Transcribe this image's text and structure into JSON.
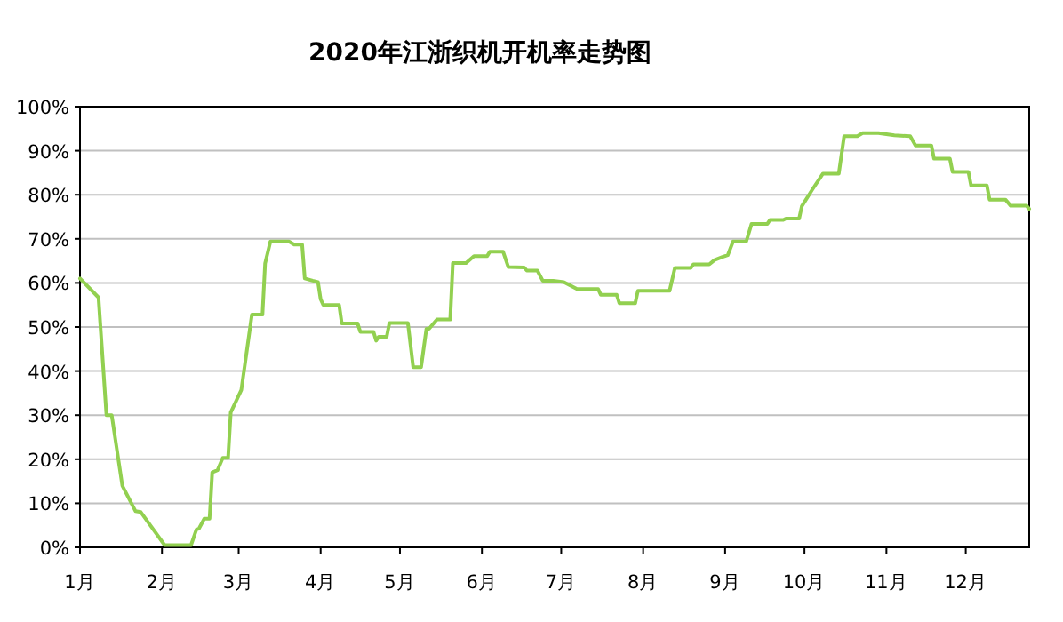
{
  "chart_data": {
    "type": "line",
    "title": "2020年江浙织机开机率走势图",
    "xlim": [
      "--01-01",
      "--12-25"
    ],
    "xticks": [
      {
        "value": "--01-01",
        "label": "1月"
      },
      {
        "value": "--02-01",
        "label": "2月"
      },
      {
        "value": "--03-01",
        "label": "3月"
      },
      {
        "value": "--04-01",
        "label": "4月"
      },
      {
        "value": "--05-01",
        "label": "5月"
      },
      {
        "value": "--06-01",
        "label": "6月"
      },
      {
        "value": "--07-01",
        "label": "7月"
      },
      {
        "value": "--08-01",
        "label": "8月"
      },
      {
        "value": "--09-01",
        "label": "9月"
      },
      {
        "value": "--10-01",
        "label": "10月"
      },
      {
        "value": "--11-01",
        "label": "11月"
      },
      {
        "value": "--12-01",
        "label": "12月"
      }
    ],
    "ylim": [
      0,
      100
    ],
    "yticks": [
      {
        "value": 0,
        "label": "0%"
      },
      {
        "value": 10,
        "label": "10%"
      },
      {
        "value": 20,
        "label": "20%"
      },
      {
        "value": 30,
        "label": "30%"
      },
      {
        "value": 40,
        "label": "40%"
      },
      {
        "value": 50,
        "label": "50%"
      },
      {
        "value": 60,
        "label": "60%"
      },
      {
        "value": 70,
        "label": "70%"
      },
      {
        "value": 80,
        "label": "80%"
      },
      {
        "value": 90,
        "label": "90%"
      },
      {
        "value": 100,
        "label": "100%"
      }
    ],
    "grid": "y",
    "marker": "none",
    "line_style": "solid",
    "series": [
      {
        "color": "#92d050",
        "x": [
          "--01-01",
          "--01-08",
          "--01-11",
          "--01-13",
          "--01-17",
          "--01-22",
          "--01-24",
          "--02-02",
          "--02-12",
          "--02-14",
          "--02-15",
          "--02-17",
          "--02-19",
          "--02-20",
          "--02-22",
          "--02-24",
          "--02-26",
          "--02-27",
          "--03-02",
          "--03-06",
          "--03-10",
          "--03-11",
          "--03-13",
          "--03-20",
          "--03-22",
          "--03-25",
          "--03-26",
          "--03-29",
          "--03-31",
          "--04-01",
          "--04-02",
          "--04-08",
          "--04-09",
          "--04-15",
          "--04-16",
          "--04-21",
          "--04-22",
          "--04-23",
          "--04-26",
          "--04-27",
          "--05-04",
          "--05-06",
          "--05-09",
          "--05-11",
          "--05-12",
          "--05-15",
          "--05-20",
          "--05-21",
          "--05-26",
          "--05-29",
          "--06-03",
          "--06-04",
          "--06-09",
          "--06-11",
          "--06-17",
          "--06-18",
          "--06-22",
          "--06-24",
          "--06-28",
          "--07-02",
          "--07-07",
          "--07-15",
          "--07-16",
          "--07-22",
          "--07-23",
          "--07-29",
          "--07-30",
          "--08-11",
          "--08-13",
          "--08-19",
          "--08-20",
          "--08-26",
          "--08-28",
          "--08-31",
          "--09-02",
          "--09-04",
          "--09-09",
          "--09-11",
          "--09-17",
          "--09-18",
          "--09-23",
          "--09-24",
          "--09-29",
          "--09-30",
          "--10-04",
          "--10-08",
          "--10-14",
          "--10-16",
          "--10-21",
          "--10-23",
          "--10-29",
          "--11-04",
          "--11-10",
          "--11-12",
          "--11-18",
          "--11-19",
          "--11-25",
          "--11-26",
          "--12-02",
          "--12-03",
          "--12-09",
          "--12-10",
          "--12-16",
          "--12-18",
          "--12-24",
          "--12-25"
        ],
        "values": [
          61,
          56.7,
          30,
          30,
          14,
          8.2,
          8,
          0.5,
          0.5,
          4,
          4.3,
          6.5,
          6.5,
          17,
          17.5,
          20.3,
          20.3,
          30.6,
          35.7,
          52.8,
          52.8,
          64.4,
          69.4,
          69.4,
          68.7,
          68.7,
          61,
          60.5,
          60.2,
          56.3,
          55,
          55,
          50.8,
          50.8,
          48.9,
          48.9,
          46.9,
          47.8,
          47.8,
          50.9,
          50.9,
          40.9,
          40.9,
          49.6,
          49.6,
          51.7,
          51.7,
          64.5,
          64.5,
          66.1,
          66.1,
          67.1,
          67.1,
          63.6,
          63.5,
          62.8,
          62.8,
          60.5,
          60.5,
          60.2,
          58.6,
          58.6,
          57.3,
          57.3,
          55.4,
          55.4,
          58.2,
          58.2,
          63.4,
          63.4,
          64.2,
          64.2,
          65.2,
          65.9,
          66.3,
          69.4,
          69.4,
          73.4,
          73.4,
          74.3,
          74.3,
          74.6,
          74.6,
          77.4,
          81.2,
          84.8,
          84.8,
          93.3,
          93.3,
          94,
          94,
          93.5,
          93.3,
          91.2,
          91.2,
          88.2,
          88.2,
          85.2,
          85.2,
          82.1,
          82.1,
          78.9,
          78.9,
          77.5,
          77.5,
          76.8
        ]
      }
    ]
  }
}
